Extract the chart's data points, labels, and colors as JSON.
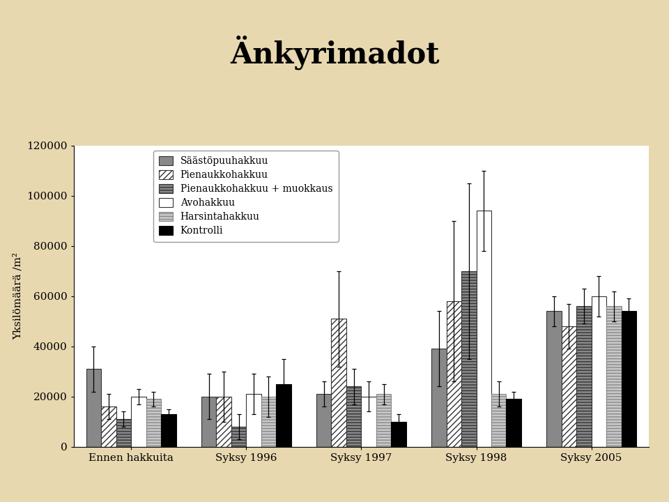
{
  "title": "Änkyrimadot",
  "ylabel": "Yksilömäärä /m²",
  "groups": [
    "Ennen hakkuita",
    "Syksy 1996",
    "Syksy 1997",
    "Syksy 1998",
    "Syksy 2005"
  ],
  "series_labels": [
    "Säästöpuuhakkuu",
    "Pienaukkohakkuu",
    "Pienaukkohakkuu + muokkaus",
    "Avohakkuu",
    "Harsintahakkuu",
    "Kontrolli"
  ],
  "values": [
    [
      31000,
      20000,
      21000,
      39000,
      54000
    ],
    [
      16000,
      20000,
      51000,
      58000,
      48000
    ],
    [
      11000,
      8000,
      24000,
      70000,
      56000
    ],
    [
      20000,
      21000,
      20000,
      94000,
      60000
    ],
    [
      19000,
      20000,
      21000,
      21000,
      56000
    ],
    [
      13000,
      25000,
      10000,
      19000,
      54000
    ]
  ],
  "errors": [
    [
      9000,
      9000,
      5000,
      15000,
      6000
    ],
    [
      5000,
      10000,
      19000,
      32000,
      9000
    ],
    [
      3000,
      5000,
      7000,
      35000,
      7000
    ],
    [
      3000,
      8000,
      6000,
      16000,
      8000
    ],
    [
      3000,
      8000,
      4000,
      5000,
      6000
    ],
    [
      2000,
      10000,
      3000,
      3000,
      5000
    ]
  ],
  "bar_facecolors": [
    "#888888",
    "#ffffff",
    "#888888",
    "#ffffff",
    "#c8c8c8",
    "#000000"
  ],
  "bar_hatches": [
    "",
    "////",
    "----",
    "",
    "----",
    ""
  ],
  "bar_edgecolors": [
    "#333333",
    "#333333",
    "#333333",
    "#333333",
    "#888888",
    "#000000"
  ],
  "legend_facecolors": [
    "#888888",
    "#ffffff",
    "#888888",
    "#ffffff",
    "#c8c8c8",
    "#000000"
  ],
  "legend_hatches": [
    "",
    "////",
    "----",
    "",
    "----",
    ""
  ],
  "legend_edgecolors": [
    "#333333",
    "#333333",
    "#333333",
    "#333333",
    "#888888",
    "#000000"
  ],
  "ylim": [
    0,
    120000
  ],
  "yticks": [
    0,
    20000,
    40000,
    60000,
    80000,
    100000,
    120000
  ],
  "background_color": "#e8d8b0",
  "plot_bg": "#ffffff",
  "title_fontsize": 30,
  "axis_fontsize": 11,
  "legend_fontsize": 10,
  "bar_width": 0.13
}
